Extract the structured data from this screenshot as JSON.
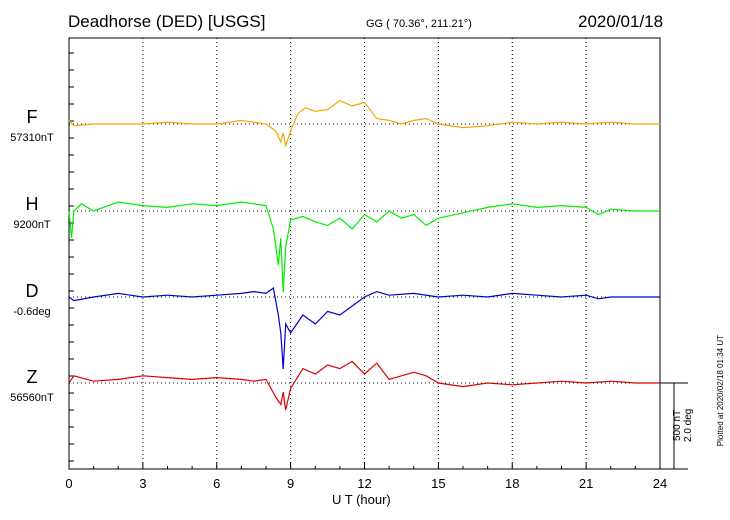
{
  "header": {
    "station": "Deadhorse (DED)  [USGS]",
    "coords": "GG ( 70.36°, 211.21°)",
    "date": "2020/01/18"
  },
  "xlabel": "U T (hour)",
  "scale_label": "500 nT\n2.0 deg",
  "plotted": "Plotted at 2020/02/18 01:34 UT",
  "channels": [
    {
      "name": "F",
      "baseline": "57310nT",
      "color": "#f0a800"
    },
    {
      "name": "H",
      "baseline": "9200nT",
      "color": "#00ee00"
    },
    {
      "name": "D",
      "baseline": "-0.6deg",
      "color": "#0000cc"
    },
    {
      "name": "Z",
      "baseline": "56560nT",
      "color": "#dd0000"
    }
  ],
  "chart_data": {
    "type": "line",
    "title": "Deadhorse (DED)  [USGS]",
    "xlabel": "U T (hour)",
    "ylabel": "",
    "xlim": [
      0,
      24
    ],
    "xticks": [
      0,
      3,
      6,
      9,
      12,
      15,
      18,
      21,
      24
    ],
    "grid": true,
    "scale": "500 nT / 2.0 deg",
    "units_per_division": 500,
    "series": [
      {
        "name": "F",
        "baseline": "57310nT",
        "x": [
          0,
          0.2,
          1,
          2,
          3,
          4,
          5,
          6,
          7,
          7.5,
          8,
          8.4,
          8.6,
          8.7,
          8.8,
          9,
          9.3,
          9.6,
          10,
          10.5,
          11,
          11.5,
          12,
          12.5,
          13,
          13.5,
          14,
          14.5,
          15,
          16,
          17,
          18,
          19,
          20,
          21,
          22,
          23,
          24
        ],
        "values": [
          20,
          -10,
          0,
          0,
          0,
          10,
          0,
          0,
          20,
          10,
          0,
          -40,
          -100,
          -50,
          -120,
          -40,
          60,
          90,
          70,
          80,
          130,
          100,
          120,
          30,
          20,
          0,
          20,
          30,
          0,
          -20,
          -10,
          10,
          0,
          10,
          0,
          10,
          0,
          0
        ]
      },
      {
        "name": "H",
        "baseline": "9200nT",
        "x": [
          0,
          0.1,
          0.2,
          0.5,
          1,
          2,
          3,
          4,
          5,
          6,
          7,
          7.5,
          8,
          8.3,
          8.5,
          8.6,
          8.7,
          8.8,
          9,
          9.5,
          10,
          10.5,
          11,
          11.5,
          12,
          12.5,
          13,
          13.5,
          14,
          14.5,
          15,
          16,
          17,
          18,
          19,
          20,
          21,
          21.5,
          22,
          23,
          24
        ],
        "values": [
          0,
          -150,
          0,
          40,
          0,
          50,
          30,
          20,
          40,
          30,
          50,
          40,
          30,
          -100,
          -300,
          -150,
          -450,
          -200,
          -50,
          -30,
          -60,
          -80,
          -40,
          -100,
          -20,
          -60,
          0,
          -40,
          -20,
          -80,
          -40,
          -10,
          20,
          40,
          20,
          30,
          20,
          -20,
          10,
          0,
          0
        ]
      },
      {
        "name": "D",
        "baseline": "-0.6deg",
        "x": [
          0,
          0.2,
          1,
          2,
          3,
          4,
          5,
          6,
          7,
          7.5,
          8,
          8.3,
          8.5,
          8.6,
          8.7,
          8.8,
          9,
          9.5,
          10,
          10.5,
          11,
          11.5,
          12,
          12.5,
          13,
          14,
          15,
          16,
          17,
          18,
          19,
          20,
          21,
          21.5,
          22,
          23,
          24
        ],
        "values": [
          0,
          -20,
          0,
          20,
          0,
          10,
          0,
          10,
          20,
          30,
          20,
          50,
          -100,
          -200,
          -400,
          -150,
          -200,
          -100,
          -150,
          -80,
          -100,
          -50,
          0,
          30,
          10,
          20,
          0,
          10,
          0,
          20,
          10,
          0,
          10,
          -10,
          0,
          0,
          0
        ]
      },
      {
        "name": "Z",
        "baseline": "56560nT",
        "x": [
          0,
          0.2,
          1,
          2,
          3,
          4,
          5,
          6,
          7,
          7.5,
          8,
          8.4,
          8.6,
          8.7,
          8.8,
          9,
          9.5,
          10,
          10.5,
          11,
          11.5,
          12,
          12.5,
          13,
          14,
          14.5,
          15,
          16,
          17,
          18,
          19,
          20,
          21,
          22,
          23,
          24
        ],
        "values": [
          0,
          40,
          10,
          20,
          40,
          30,
          20,
          30,
          20,
          10,
          20,
          -80,
          -120,
          -50,
          -150,
          -30,
          80,
          50,
          100,
          80,
          120,
          50,
          110,
          20,
          60,
          40,
          0,
          -20,
          0,
          -10,
          0,
          10,
          0,
          10,
          0,
          0
        ]
      }
    ]
  }
}
